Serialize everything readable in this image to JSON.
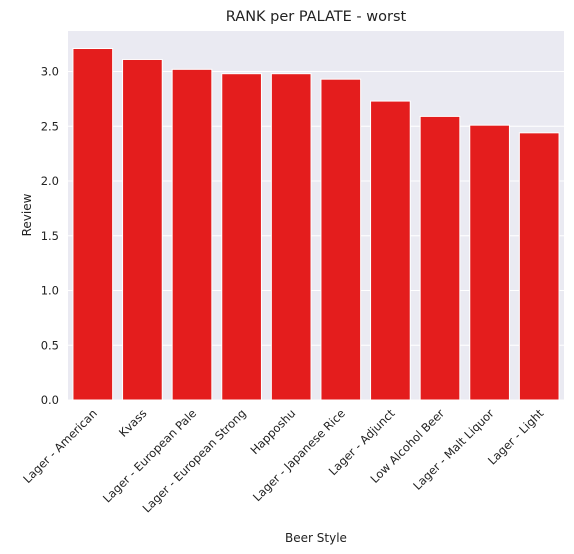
{
  "chart_data": {
    "type": "bar",
    "title": "RANK per PALATE - worst",
    "xlabel": "Beer Style",
    "ylabel": "Review",
    "categories": [
      "Lager - American",
      "Kvass",
      "Lager - European Pale",
      "Lager - European Strong",
      "Happoshu",
      "Lager - Japanese Rice",
      "Lager - Adjunct",
      "Low Alcohol Beer",
      "Lager - Malt Liquor",
      "Lager - Light"
    ],
    "values": [
      3.21,
      3.11,
      3.02,
      2.98,
      2.98,
      2.93,
      2.73,
      2.59,
      2.51,
      2.44
    ],
    "ylim": [
      0,
      3.37
    ],
    "yticks": [
      "0.0",
      "0.5",
      "1.0",
      "1.5",
      "2.0",
      "2.5",
      "3.0"
    ],
    "bar_color": "#e41d1d",
    "background_color": "#eaeaf2",
    "grid": true
  }
}
